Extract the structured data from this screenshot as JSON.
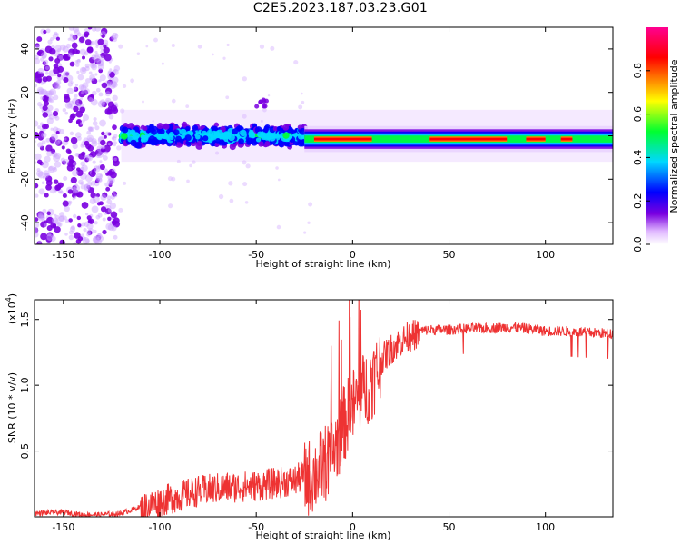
{
  "title": "C2E5.2023.187.03.23.G01",
  "chart_data": [
    {
      "type": "heatmap",
      "xlabel": "Height of straight line (km)",
      "ylabel": "Frequency (Hz)",
      "xlim": [
        -165,
        135
      ],
      "ylim": [
        -50,
        50
      ],
      "xticks": [
        -150,
        -100,
        -50,
        0,
        50,
        100
      ],
      "yticks": [
        -40,
        -20,
        0,
        20,
        40
      ],
      "colorbar": {
        "label": "Normalized spectral amplitude",
        "range": [
          0.0,
          1.0
        ],
        "ticks": [
          "0.0",
          "0.2",
          "0.4",
          "0.6",
          "0.8"
        ],
        "colors": [
          "#ffffff",
          "#7a00e0",
          "#0000ff",
          "#00d8ff",
          "#00ff30",
          "#ffff00",
          "#ff8000",
          "#ff0000",
          "#ff0090"
        ]
      },
      "features": [
        {
          "x_range": [
            -165,
            -122
          ],
          "freq_range": [
            -50,
            50
          ],
          "amplitude": 0.2,
          "note_color": "#7a00e0"
        },
        {
          "x_range": [
            -120,
            -25
          ],
          "freq_center": 0,
          "freq_halfwidth": 6,
          "amplitude": 0.4
        },
        {
          "x_range": [
            -25,
            135
          ],
          "freq_center": -1.5,
          "freq_halfwidth": 3,
          "amplitude": 0.9
        }
      ]
    },
    {
      "type": "line",
      "xlabel": "Height of straight line (km)",
      "ylabel": "SNR (10 * v/v)",
      "y_exponent_label": "(x10",
      "y_exponent": "4",
      "xlim": [
        -165,
        135
      ],
      "ylim": [
        0,
        1.65
      ],
      "xticks": [
        -150,
        -100,
        -50,
        0,
        50,
        100
      ],
      "yticks": [
        "0.5",
        "1.0",
        "1.5"
      ],
      "series": [
        {
          "color": "#ee3333",
          "x": [
            -165,
            -150,
            -140,
            -130,
            -120,
            -110,
            -100,
            -90,
            -80,
            -70,
            -60,
            -50,
            -40,
            -30,
            -20,
            -15,
            -10,
            -5,
            0,
            5,
            10,
            15,
            20,
            25,
            30,
            35,
            40,
            50,
            60,
            70,
            80,
            90,
            100,
            110,
            120,
            135
          ],
          "y": [
            0.03,
            0.04,
            0.02,
            0.02,
            0.03,
            0.08,
            0.14,
            0.18,
            0.22,
            0.24,
            0.25,
            0.26,
            0.28,
            0.3,
            0.38,
            0.45,
            0.55,
            0.75,
            0.9,
            1.0,
            1.1,
            1.22,
            1.3,
            1.36,
            1.4,
            1.42,
            1.43,
            1.43,
            1.44,
            1.44,
            1.45,
            1.44,
            1.42,
            1.42,
            1.41,
            1.4
          ]
        }
      ]
    }
  ]
}
